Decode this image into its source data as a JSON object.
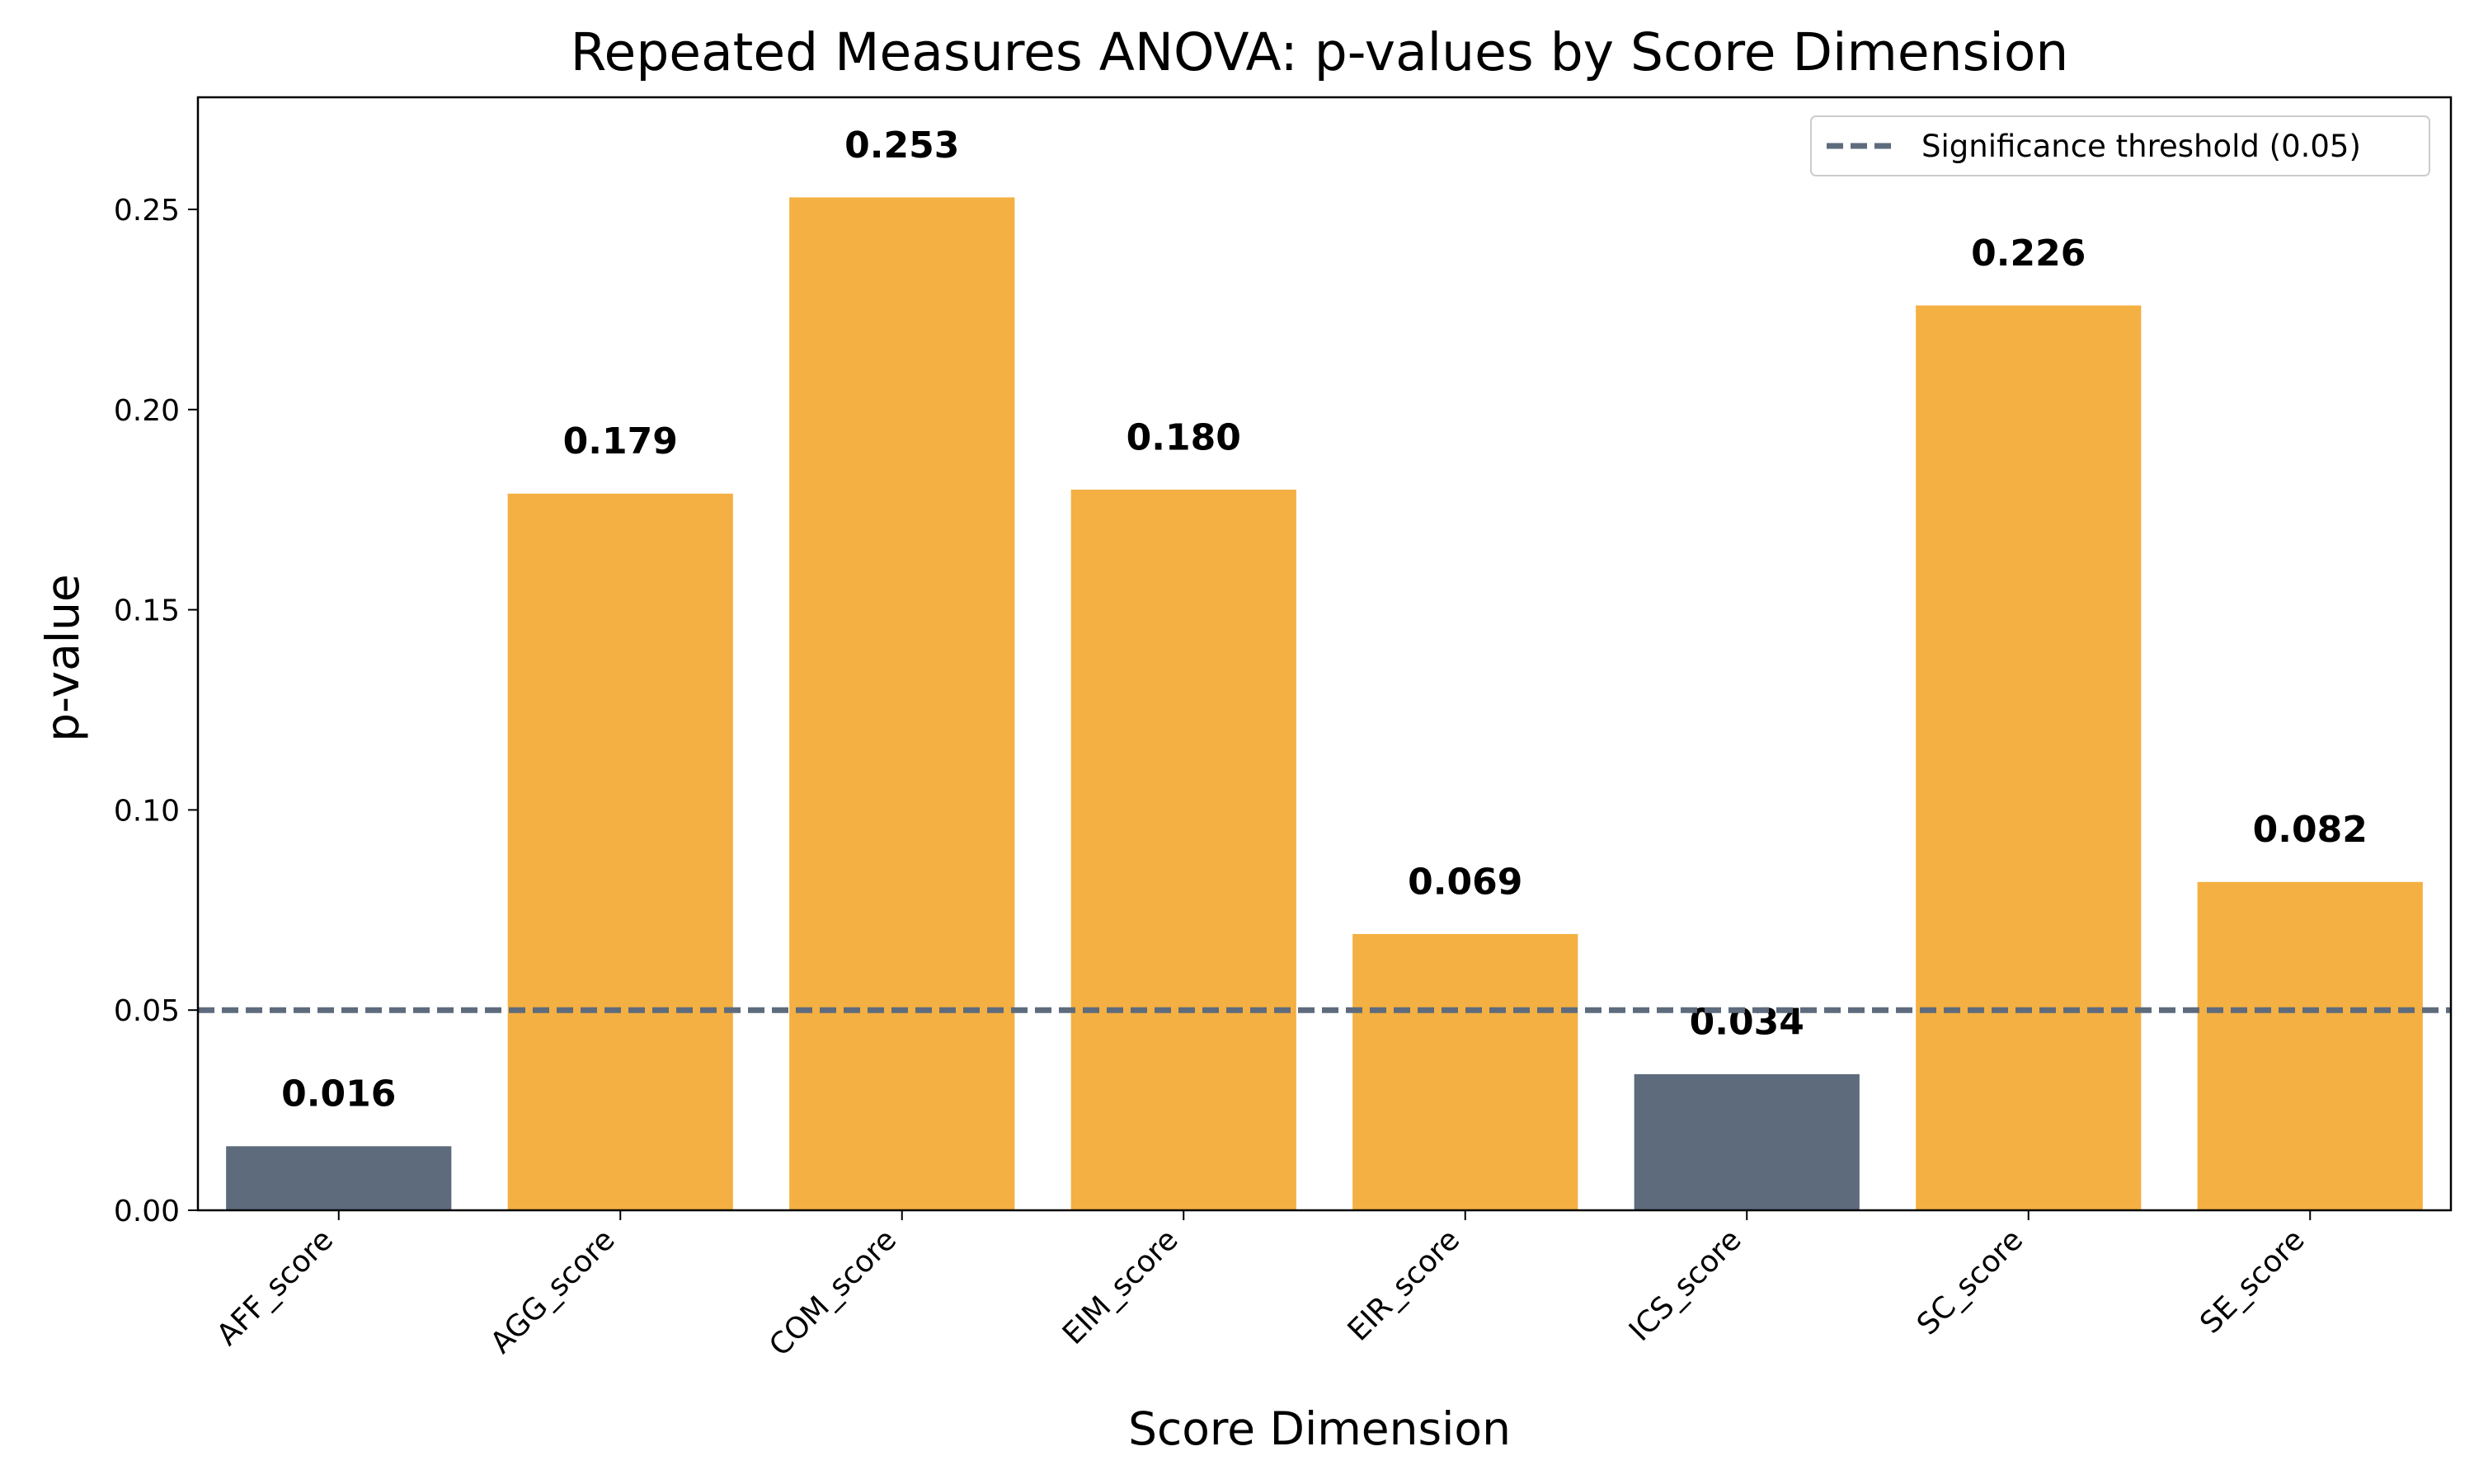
{
  "chart_data": {
    "type": "bar",
    "title": "Repeated Measures ANOVA: p-values by Score Dimension",
    "xlabel": "Score Dimension",
    "ylabel": "p-value",
    "categories": [
      "AFF_score",
      "AGG_score",
      "COM_score",
      "EIM_score",
      "EIR_score",
      "ICS_score",
      "SC_score",
      "SE_score"
    ],
    "values": [
      0.016,
      0.179,
      0.253,
      0.18,
      0.069,
      0.034,
      0.226,
      0.082
    ],
    "value_labels": [
      "0.016",
      "0.179",
      "0.253",
      "0.180",
      "0.069",
      "0.034",
      "0.226",
      "0.082"
    ],
    "ylim": [
      0,
      0.278
    ],
    "yticks": [
      0.0,
      0.05,
      0.1,
      0.15,
      0.2,
      0.25
    ],
    "ytick_labels": [
      "0.00",
      "0.05",
      "0.10",
      "0.15",
      "0.20",
      "0.25"
    ],
    "threshold": 0.05,
    "legend": {
      "placement": "top-right",
      "entries": [
        "Significance threshold (0.05)"
      ]
    },
    "colors": {
      "significant": "#5d6b7d",
      "not_significant": "#f4b042",
      "threshold_line": "#5d6b7d"
    }
  }
}
